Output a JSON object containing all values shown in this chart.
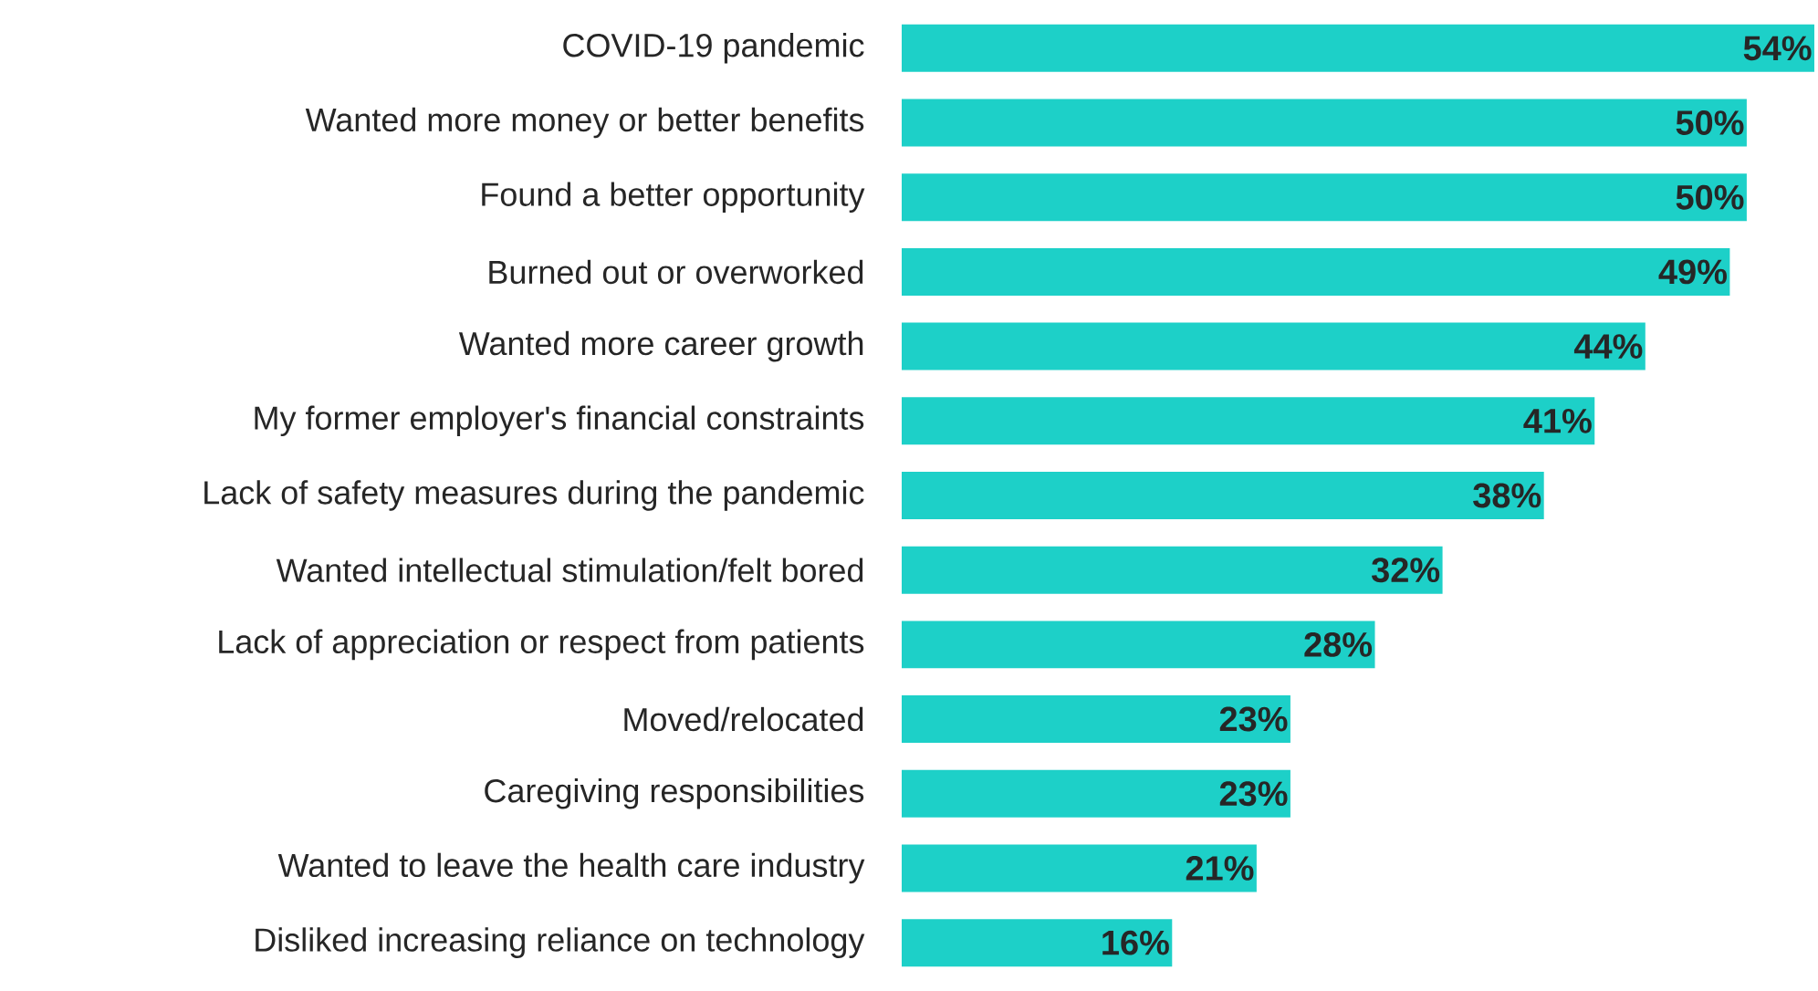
{
  "chart_data": {
    "type": "bar",
    "orientation": "horizontal",
    "color": "#1dd0c8",
    "categories": [
      "COVID-19 pandemic",
      "Wanted more money or better benefits",
      "Found a better opportunity",
      "Burned out or overworked",
      "Wanted more career growth",
      "My former employer's financial constraints",
      "Lack of safety measures during the pandemic",
      "Wanted intellectual stimulation/felt bored",
      "Lack of appreciation or respect from patients",
      "Moved/relocated",
      "Caregiving responsibilities",
      "Wanted to leave the health care industry",
      "Disliked increasing reliance on technology"
    ],
    "values": [
      54,
      50,
      50,
      49,
      44,
      41,
      38,
      32,
      28,
      23,
      23,
      21,
      16
    ],
    "value_labels": [
      "54%",
      "50%",
      "50%",
      "49%",
      "44%",
      "41%",
      "38%",
      "32%",
      "28%",
      "23%",
      "23%",
      "21%",
      "16%"
    ]
  }
}
